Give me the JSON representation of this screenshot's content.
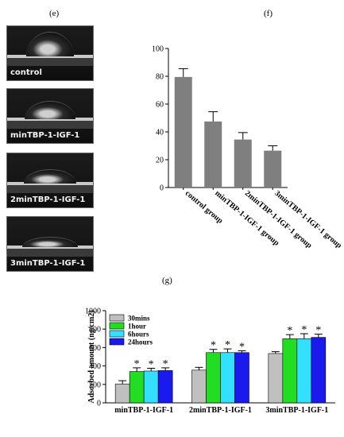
{
  "panels": {
    "e": {
      "label": "(e)"
    },
    "f": {
      "label": "(f)"
    },
    "g": {
      "label": "(g)"
    }
  },
  "photos": [
    {
      "caption": "control",
      "contact_angle_deg": 80
    },
    {
      "caption": "minTBP-1-IGF-1",
      "contact_angle_deg": 48
    },
    {
      "caption": "2minTBP-1-IGF-1",
      "contact_angle_deg": 35
    },
    {
      "caption": "3minTBP-1-IGF-1",
      "contact_angle_deg": 27
    }
  ],
  "chart_data": [
    {
      "id": "f",
      "type": "bar",
      "title": "",
      "xlabel": "",
      "ylabel": "",
      "ylim": [
        0,
        100
      ],
      "yticks": [
        0,
        20,
        40,
        60,
        80,
        100
      ],
      "categories": [
        "control group",
        "minTBP-1-IGF-1 group",
        "2minTBP-1-IGF-1 group",
        "3minTBP-1-IGF-1 group"
      ],
      "values": [
        79.5,
        47.5,
        34.5,
        26.5
      ],
      "errors": [
        6,
        7,
        5,
        3.5
      ],
      "color": "#7f7f7f",
      "grid": false
    },
    {
      "id": "g",
      "type": "bar",
      "title": "",
      "xlabel": "",
      "ylabel": "Adsorbed amount (ng/cm2)",
      "ylim": [
        0,
        1000
      ],
      "yticks": [
        0,
        200,
        400,
        600,
        800,
        1000
      ],
      "categories": [
        "minTBP-1-IGF-1",
        "2minTBP-1-IGF-1",
        "3minTBP-1-IGF-1"
      ],
      "series": [
        {
          "name": "30mins",
          "color": "#c0c0c0",
          "values": [
            205,
            355,
            535
          ],
          "errors": [
            35,
            30,
            20
          ],
          "significant": [
            false,
            false,
            false
          ]
        },
        {
          "name": "1hour",
          "color": "#22dd22",
          "values": [
            340,
            545,
            695
          ],
          "errors": [
            40,
            35,
            45
          ],
          "significant": [
            true,
            true,
            true
          ]
        },
        {
          "name": "6hours",
          "color": "#33e0ff",
          "values": [
            345,
            545,
            695
          ],
          "errors": [
            30,
            40,
            55
          ],
          "significant": [
            true,
            true,
            true
          ]
        },
        {
          "name": "24hours",
          "color": "#1a1aee",
          "values": [
            350,
            545,
            710
          ],
          "errors": [
            30,
            20,
            35
          ],
          "significant": [
            true,
            true,
            true
          ]
        }
      ],
      "significance_marker": "*",
      "legend": "top-left",
      "grid": false
    }
  ]
}
